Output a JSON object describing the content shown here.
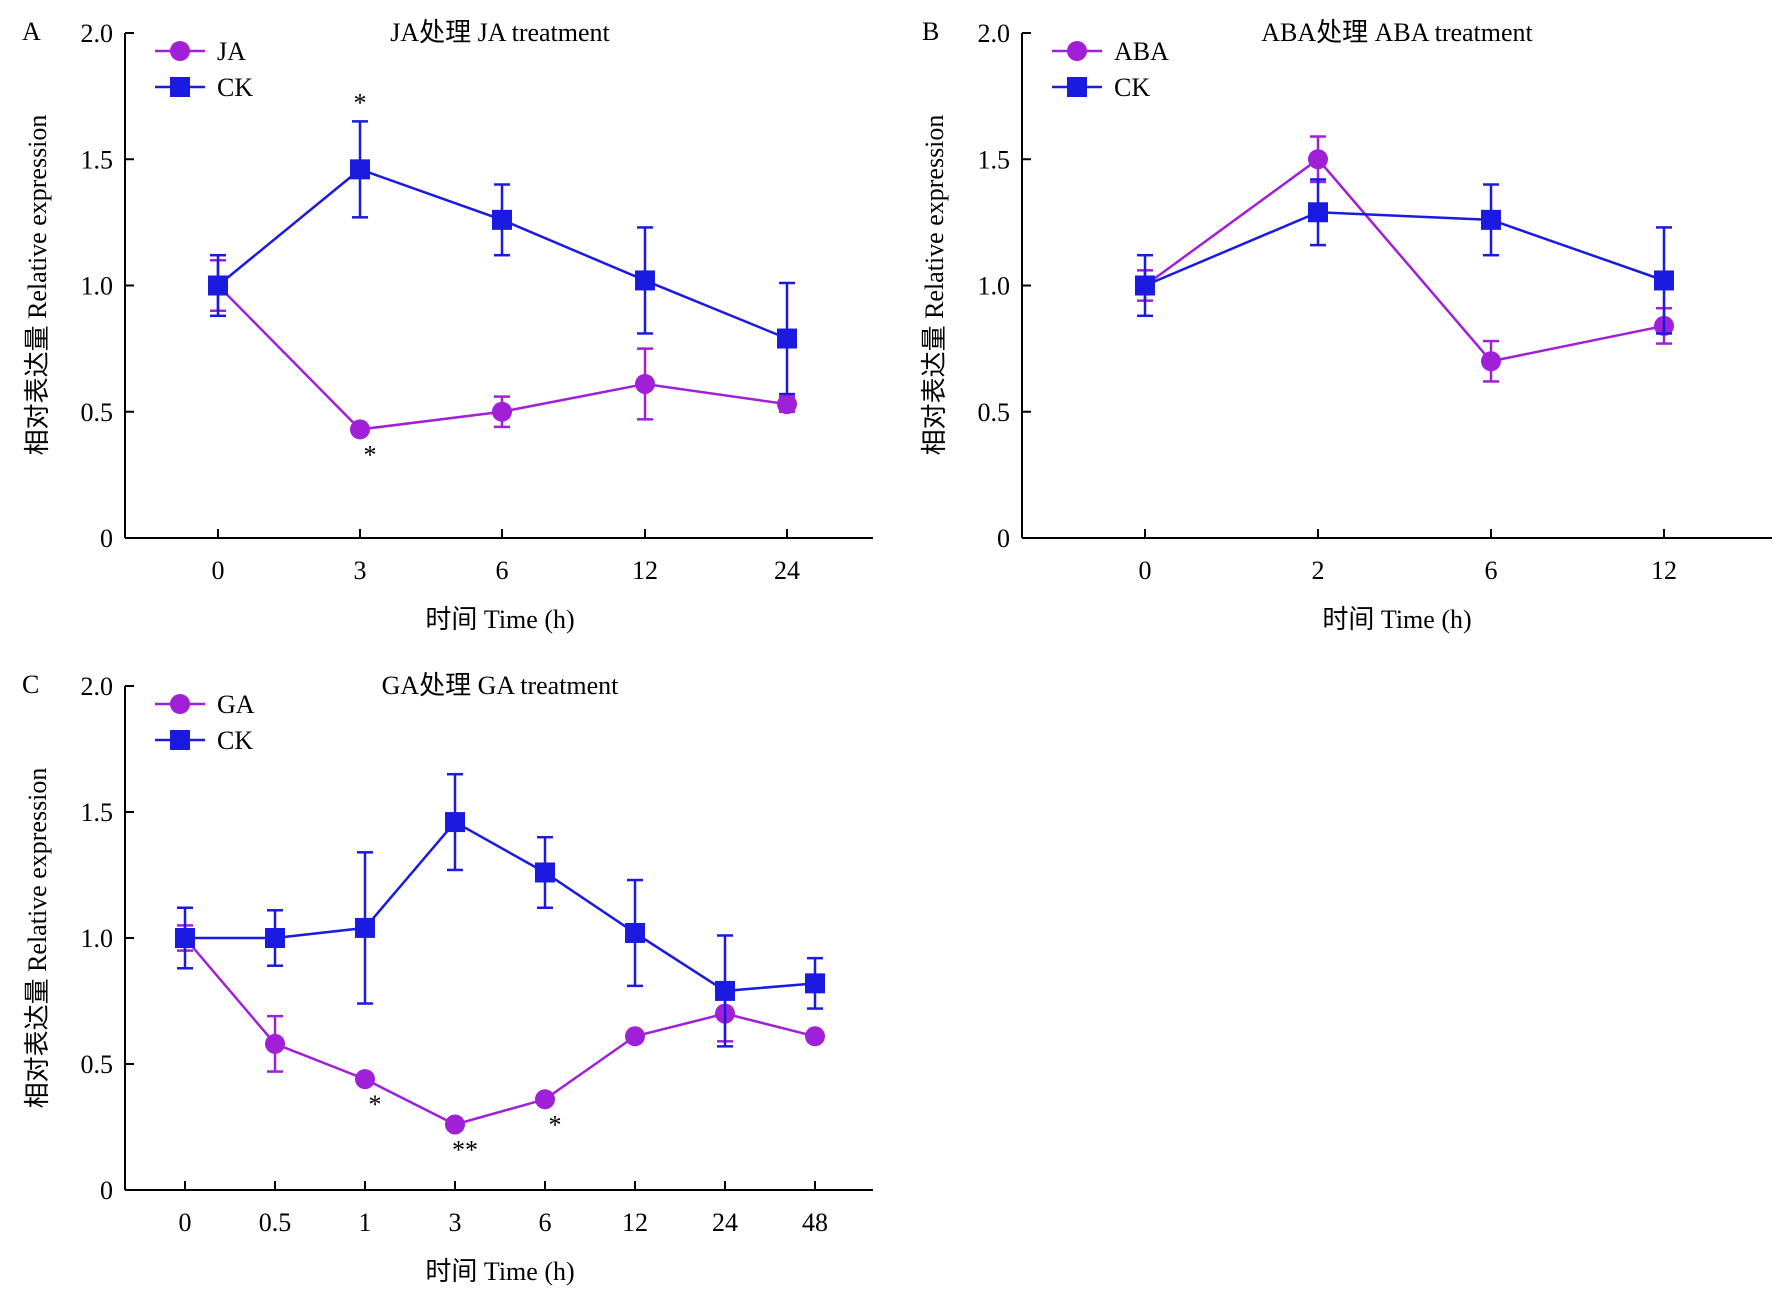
{
  "chart_data": [
    {
      "panel": "A",
      "type": "line",
      "title": "JA处理 JA treatment",
      "xlabel": "时间 Time (h)",
      "ylabel": "相对表达量 Relative expression",
      "categories": [
        "0",
        "3",
        "6",
        "12",
        "24"
      ],
      "ylim": [
        0,
        2.0
      ],
      "yticks": [
        "0",
        "0.5",
        "1.0",
        "1.5",
        "2.0"
      ],
      "grid": false,
      "legend_position": "top-left",
      "series": [
        {
          "name": "JA",
          "color": "#a020d8",
          "marker": "circle",
          "values": [
            1.0,
            0.43,
            0.5,
            0.61,
            0.53
          ],
          "errors": [
            0.1,
            0.0,
            0.06,
            0.14,
            0.03
          ],
          "annotations": [
            null,
            "*",
            null,
            null,
            null
          ]
        },
        {
          "name": "CK",
          "color": "#1a1ae0",
          "marker": "square",
          "values": [
            1.0,
            1.46,
            1.26,
            1.02,
            0.79
          ],
          "errors": [
            0.12,
            0.19,
            0.14,
            0.21,
            0.22
          ],
          "annotations": [
            null,
            "*",
            null,
            null,
            null
          ]
        }
      ]
    },
    {
      "panel": "B",
      "type": "line",
      "title": "ABA处理 ABA treatment",
      "xlabel": "时间 Time (h)",
      "ylabel": "相对表达量 Relative expression",
      "categories": [
        "0",
        "2",
        "6",
        "12"
      ],
      "ylim": [
        0,
        2.0
      ],
      "yticks": [
        "0",
        "0.5",
        "1.0",
        "1.5",
        "2.0"
      ],
      "grid": false,
      "legend_position": "top-left",
      "series": [
        {
          "name": "ABA",
          "color": "#a020d8",
          "marker": "circle",
          "values": [
            1.0,
            1.5,
            0.7,
            0.84
          ],
          "errors": [
            0.06,
            0.09,
            0.08,
            0.07
          ],
          "annotations": [
            null,
            null,
            null,
            null
          ]
        },
        {
          "name": "CK",
          "color": "#1a1ae0",
          "marker": "square",
          "values": [
            1.0,
            1.29,
            1.26,
            1.02
          ],
          "errors": [
            0.12,
            0.13,
            0.14,
            0.21
          ],
          "annotations": [
            null,
            null,
            null,
            null
          ]
        }
      ]
    },
    {
      "panel": "C",
      "type": "line",
      "title": "GA处理 GA treatment",
      "xlabel": "时间 Time (h)",
      "ylabel": "相对表达量 Relative expression",
      "categories": [
        "0",
        "0.5",
        "1",
        "3",
        "6",
        "12",
        "24",
        "48"
      ],
      "ylim": [
        0,
        2.0
      ],
      "yticks": [
        "0",
        "0.5",
        "1.0",
        "1.5",
        "2.0"
      ],
      "grid": false,
      "legend_position": "top-left",
      "series": [
        {
          "name": "GA",
          "color": "#a020d8",
          "marker": "circle",
          "values": [
            1.0,
            0.58,
            0.44,
            0.26,
            0.36,
            0.61,
            0.7,
            0.61
          ],
          "errors": [
            0.05,
            0.11,
            0.0,
            0.0,
            0.0,
            0.0,
            0.11,
            0.0
          ],
          "annotations": [
            null,
            null,
            "*",
            "**",
            "*",
            null,
            null,
            null
          ]
        },
        {
          "name": "CK",
          "color": "#1a1ae0",
          "marker": "square",
          "values": [
            1.0,
            1.0,
            1.04,
            1.46,
            1.26,
            1.02,
            0.79,
            0.82
          ],
          "errors": [
            0.12,
            0.11,
            0.3,
            0.19,
            0.14,
            0.21,
            0.22,
            0.1
          ],
          "annotations": [
            null,
            null,
            null,
            null,
            null,
            null,
            null,
            null
          ]
        }
      ]
    }
  ]
}
